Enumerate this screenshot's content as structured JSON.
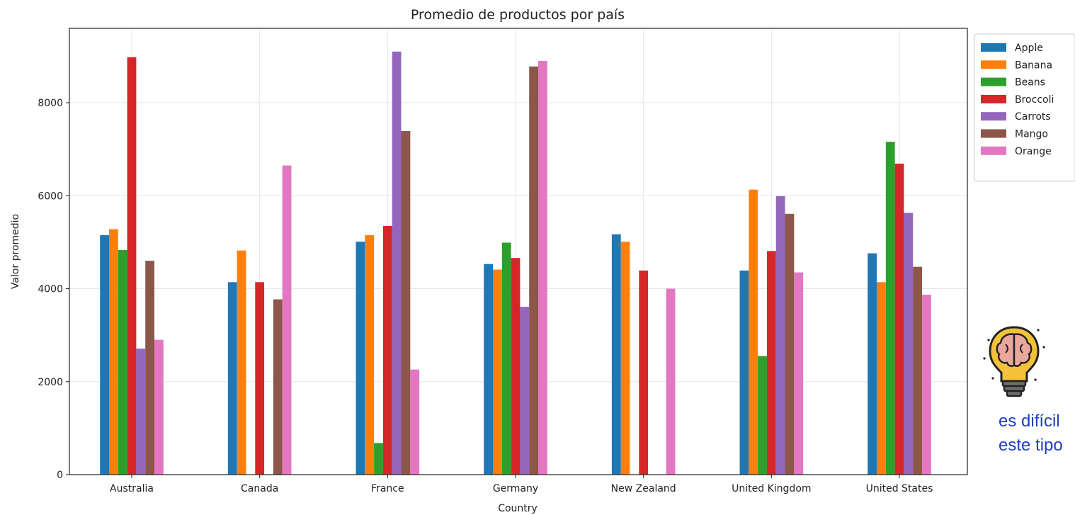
{
  "chart_data": {
    "type": "bar",
    "title": "Promedio de productos por país",
    "xlabel": "Country",
    "ylabel": "Valor promedio",
    "categories": [
      "Australia",
      "Canada",
      "France",
      "Germany",
      "New Zealand",
      "United Kingdom",
      "United States"
    ],
    "ylim": [
      0,
      9600
    ],
    "yticks": [
      0,
      2000,
      4000,
      6000,
      8000
    ],
    "grid": true,
    "legend_position": "outside-top-right",
    "series": [
      {
        "name": "Apple",
        "color": "#1f77b4",
        "values": [
          5150,
          4140,
          5010,
          4530,
          5170,
          4390,
          4760
        ]
      },
      {
        "name": "Banana",
        "color": "#ff7f0e",
        "values": [
          5280,
          4820,
          5150,
          4410,
          5010,
          6130,
          4140
        ]
      },
      {
        "name": "Beans",
        "color": "#2ca02c",
        "values": [
          4830,
          null,
          680,
          4990,
          null,
          2550,
          7160
        ]
      },
      {
        "name": "Broccoli",
        "color": "#d62728",
        "values": [
          8980,
          4140,
          5350,
          4660,
          4390,
          4810,
          6690
        ]
      },
      {
        "name": "Carrots",
        "color": "#9467bd",
        "values": [
          2710,
          null,
          9100,
          3610,
          null,
          5990,
          5630
        ]
      },
      {
        "name": "Mango",
        "color": "#8c564b",
        "values": [
          4600,
          3770,
          7390,
          8780,
          null,
          5610,
          4470
        ]
      },
      {
        "name": "Orange",
        "color": "#e377c2",
        "values": [
          2900,
          6650,
          2260,
          8900,
          4000,
          4350,
          3870
        ]
      }
    ]
  },
  "side_note": {
    "line1": "es difícil",
    "line2": "este tipo"
  },
  "icon": "brain-lightbulb-icon"
}
